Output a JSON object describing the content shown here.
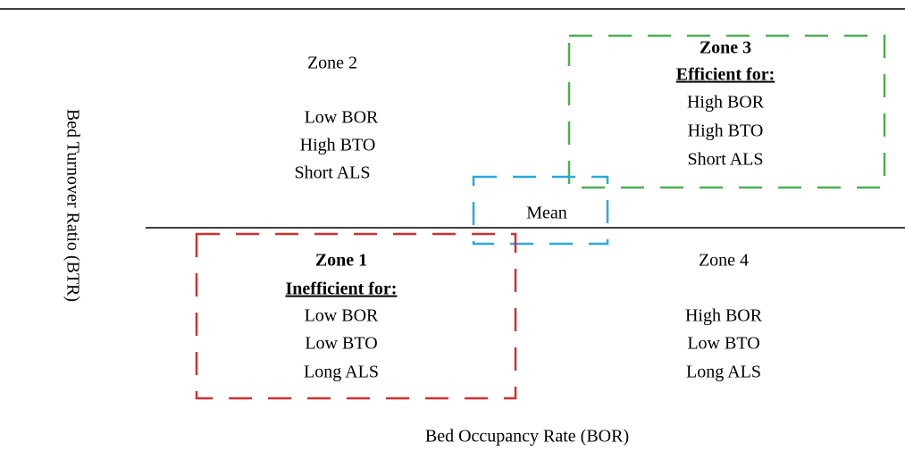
{
  "x_axis_label": "Bed Occupancy Rate (BOR)",
  "y_axis_label": "Bed Turnover Ratio (BTR)",
  "mean_label": "Mean",
  "zones": [
    {
      "title": "Zone 1",
      "subtitle": "Inefficient for:",
      "lines": [
        "Low BOR",
        "Low BTO",
        "Long ALS"
      ]
    },
    {
      "title": "Zone 2",
      "lines": [
        "Low BOR",
        "High BTO",
        "Short ALS"
      ]
    },
    {
      "title": "Zone 3",
      "subtitle": "Efficient for:",
      "lines": [
        "High BOR",
        "High BTO",
        "Short ALS"
      ]
    },
    {
      "title": "Zone 4",
      "lines": [
        "High BOR",
        "Low BTO",
        "Long ALS"
      ]
    }
  ]
}
